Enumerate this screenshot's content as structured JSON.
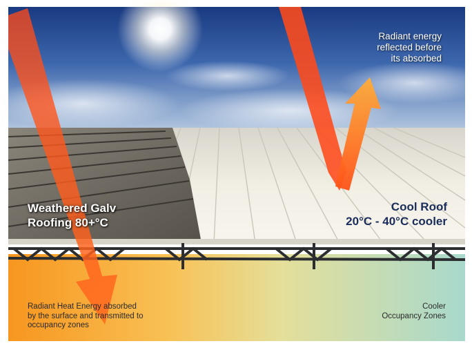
{
  "labels": {
    "reflected": [
      "Radiant energy",
      "reflected before",
      "its absorbed"
    ],
    "galv": [
      "Weathered Galv",
      "Roofing 80+°C"
    ],
    "cool_roof": [
      "Cool Roof",
      "20°C - 40°C cooler"
    ],
    "absorbed": [
      "Radiant Heat Energy absorbed",
      "by the surface and transmitted to",
      "occupancy zones"
    ],
    "cooler_zones": [
      "Cooler",
      "Occupancy Zones"
    ]
  },
  "colors": {
    "sky_top": "#1d3f86",
    "sky_bottom": "#a9c1dc",
    "roof_light": "#f2efe4",
    "roof_weathered": "#6f6a62",
    "truss": "#2b2d30",
    "zone_warm": "#f59a24",
    "zone_cool": "#b3dcc8",
    "arrow": "#ff5a1f"
  }
}
